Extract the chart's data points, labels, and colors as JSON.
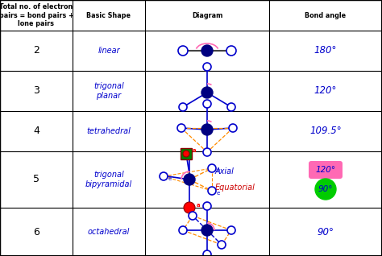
{
  "col_headers": [
    "Total no. of electron\npairs = bond pairs +\nlone pairs",
    "Basic Shape",
    "Diagram",
    "Bond angle"
  ],
  "rows": [
    {
      "n": "2",
      "shape": "linear",
      "angle": "180°"
    },
    {
      "n": "3",
      "shape": "trigonal\nplanar",
      "angle": "120°"
    },
    {
      "n": "4",
      "shape": "tetrahedral",
      "angle": "109.5°"
    },
    {
      "n": "5",
      "shape": "trigonal\nbipyramidal",
      "angle": ""
    },
    {
      "n": "6",
      "shape": "octahedral",
      "angle": "90°"
    }
  ],
  "blue": "#0000cc",
  "navy": "#000080",
  "pink": "#FF69B4",
  "green": "#00cc00",
  "orange": "#FF8C00",
  "red": "#cc0000",
  "yellow": "#ffff00",
  "bg_color": "#ffffff"
}
